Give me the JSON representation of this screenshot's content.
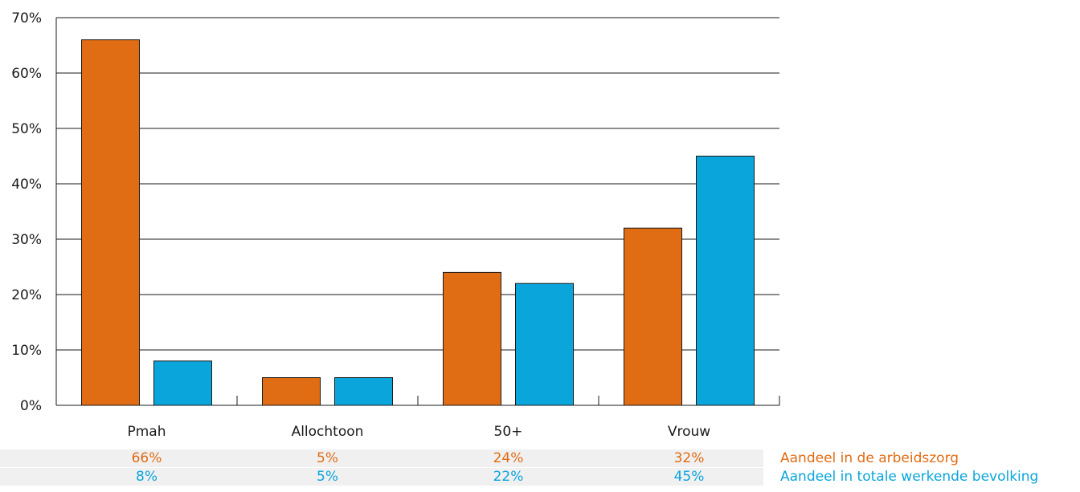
{
  "colors": {
    "series1": "#e06c13",
    "series2": "#0aa5db",
    "grid": "#1a1a1a"
  },
  "chart_data": {
    "type": "bar",
    "categories": [
      "Pmah",
      "Allochtoon",
      "50+",
      "Vrouw"
    ],
    "series": [
      {
        "name": "Aandeel in de arbeidszorg",
        "values": [
          66,
          5,
          24,
          32
        ],
        "labels": [
          "66%",
          "5%",
          "24%",
          "32%"
        ]
      },
      {
        "name": "Aandeel in totale werkende bevolking",
        "values": [
          8,
          5,
          22,
          45
        ],
        "labels": [
          "8%",
          "5%",
          "22%",
          "45%"
        ]
      }
    ],
    "yticks": [
      "0%",
      "10%",
      "20%",
      "30%",
      "40%",
      "50%",
      "60%",
      "70%"
    ],
    "ylim": [
      0,
      70
    ],
    "grid": true
  }
}
